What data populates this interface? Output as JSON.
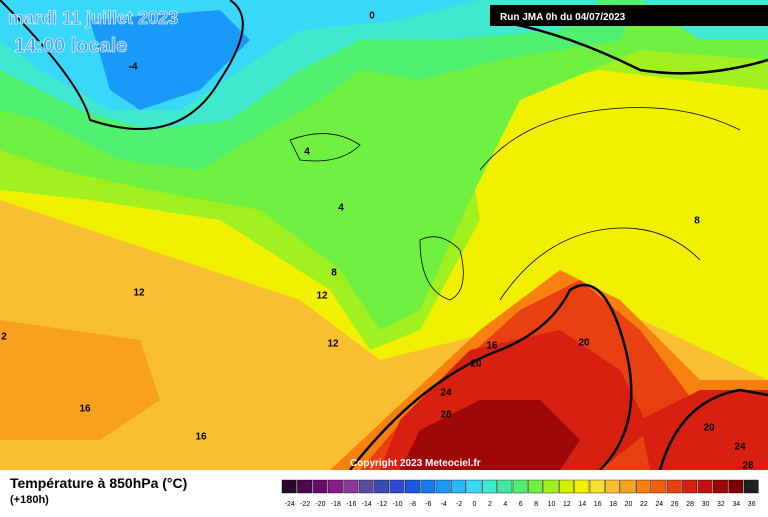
{
  "header": {
    "date": "mardi 11 juillet 2023",
    "time": "14:00 locale",
    "run": "Run JMA 0h du 04/07/2023"
  },
  "copyright": "Copyright 2023 Meteociel.fr",
  "legend": {
    "title": "Température à 850hPa (°C)",
    "subtitle": "(+180h)",
    "ticks": [
      -24,
      -22,
      -20,
      -18,
      -16,
      -14,
      -12,
      -10,
      -8,
      -6,
      -4,
      -2,
      0,
      2,
      4,
      6,
      8,
      10,
      12,
      14,
      16,
      18,
      20,
      22,
      24,
      26,
      28,
      30,
      32,
      34,
      36
    ],
    "colors": [
      "#2a0a2a",
      "#4b0a4b",
      "#6a0a6a",
      "#8a1a8a",
      "#8a3a9a",
      "#5a4aa0",
      "#3a4ab0",
      "#2a4ad0",
      "#1a5ae0",
      "#1a7af0",
      "#1a9af8",
      "#2ab8f8",
      "#3ad8f8",
      "#40e8d0",
      "#40e8a0",
      "#50f070",
      "#70f040",
      "#a0f020",
      "#d0f000",
      "#f0f000",
      "#f8e030",
      "#f8c030",
      "#f8a020",
      "#f88010",
      "#f06010",
      "#e84010",
      "#d82010",
      "#c01010",
      "#a00808",
      "#800000",
      "#202020"
    ]
  },
  "contour_labels": [
    "0",
    "-4",
    "4",
    "4",
    "8",
    "12",
    "12",
    "12",
    "16",
    "16",
    "16",
    "20",
    "20",
    "20",
    "24",
    "24",
    "28",
    "28",
    "8",
    "2"
  ]
}
